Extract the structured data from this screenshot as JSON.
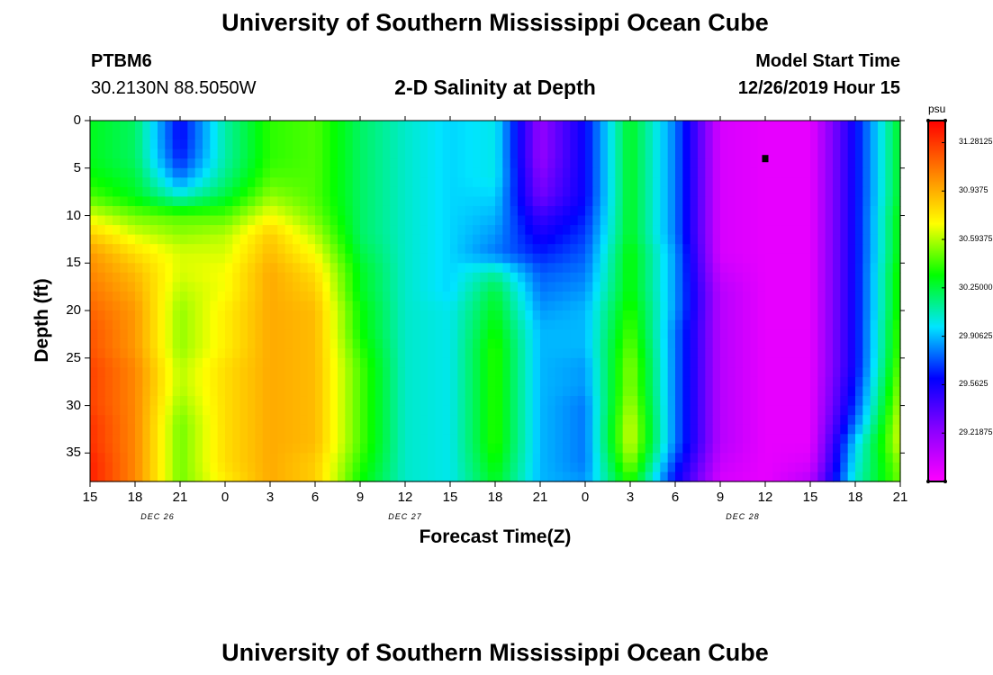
{
  "header": {
    "title_top": "University of Southern Mississippi Ocean Cube",
    "title_bottom": "University of Southern Mississippi Ocean Cube",
    "station_id": "PTBM6",
    "station_coords": "30.2130N 88.5050W",
    "subtitle": "2-D Salinity at Depth",
    "model_label": "Model Start Time",
    "model_time": "12/26/2019 Hour 15"
  },
  "chart_data": {
    "type": "heatmap",
    "title": "2-D Salinity at Depth",
    "xlabel": "Forecast Time(Z)",
    "ylabel": "Depth (ft)",
    "x_range_hours": [
      0,
      54
    ],
    "x_ticks": [
      {
        "hour": 0,
        "label": "15"
      },
      {
        "hour": 3,
        "label": "18"
      },
      {
        "hour": 6,
        "label": "21"
      },
      {
        "hour": 9,
        "label": "0"
      },
      {
        "hour": 12,
        "label": "3"
      },
      {
        "hour": 15,
        "label": "6"
      },
      {
        "hour": 18,
        "label": "9"
      },
      {
        "hour": 21,
        "label": "12"
      },
      {
        "hour": 24,
        "label": "15"
      },
      {
        "hour": 27,
        "label": "18"
      },
      {
        "hour": 30,
        "label": "21"
      },
      {
        "hour": 33,
        "label": "0"
      },
      {
        "hour": 36,
        "label": "3"
      },
      {
        "hour": 39,
        "label": "6"
      },
      {
        "hour": 42,
        "label": "9"
      },
      {
        "hour": 45,
        "label": "12"
      },
      {
        "hour": 48,
        "label": "15"
      },
      {
        "hour": 51,
        "label": "18"
      },
      {
        "hour": 54,
        "label": "21"
      }
    ],
    "date_labels": [
      {
        "hour": 4.5,
        "label": "DEC 26"
      },
      {
        "hour": 21,
        "label": "DEC 27"
      },
      {
        "hour": 43.5,
        "label": "DEC 28"
      }
    ],
    "y_range": [
      0,
      38
    ],
    "y_ticks": [
      {
        "value": 0,
        "label": "0"
      },
      {
        "value": 5,
        "label": "5"
      },
      {
        "value": 10,
        "label": "10"
      },
      {
        "value": 15,
        "label": "15"
      },
      {
        "value": 20,
        "label": "20"
      },
      {
        "value": 25,
        "label": "25"
      },
      {
        "value": 30,
        "label": "30"
      },
      {
        "value": 35,
        "label": "35"
      }
    ],
    "colorbar": {
      "unit": "psu",
      "min": 28.875,
      "max": 31.4375,
      "tick_labels": [
        "31.28125",
        "30.9375",
        "30.59375",
        "30.25000",
        "29.90625",
        "29.5625",
        "29.21875"
      ],
      "tick_values": [
        31.28125,
        30.9375,
        30.59375,
        30.25,
        29.90625,
        29.5625,
        29.21875
      ],
      "colors": [
        "#ff00ff",
        "#8a00ff",
        "#0000ff",
        "#00e5ff",
        "#00ff00",
        "#ffff00",
        "#ff8000",
        "#ff0000"
      ]
    },
    "depths": [
      0,
      2,
      4,
      6,
      8,
      10,
      12,
      14,
      16,
      18,
      20,
      22,
      24,
      26,
      28,
      30,
      32,
      34,
      36,
      38
    ],
    "time_hours": [
      0,
      3,
      6,
      9,
      12,
      15,
      18,
      21,
      24,
      27,
      30,
      33,
      36,
      39,
      42,
      45,
      48,
      51,
      54
    ],
    "values": [
      [
        30.3,
        30.2,
        29.6,
        30.1,
        30.4,
        30.45,
        30.2,
        30.05,
        29.95,
        30.0,
        29.2,
        29.6,
        30.3,
        29.8,
        29.0,
        28.95,
        28.95,
        29.6,
        30.3
      ],
      [
        30.3,
        30.2,
        29.6,
        30.1,
        30.4,
        30.45,
        30.2,
        30.05,
        29.95,
        30.0,
        29.2,
        29.6,
        30.3,
        29.8,
        29.0,
        28.95,
        28.95,
        29.6,
        30.3
      ],
      [
        30.3,
        30.2,
        29.65,
        30.1,
        30.4,
        30.45,
        30.2,
        30.05,
        29.95,
        30.0,
        29.2,
        29.6,
        30.3,
        29.8,
        29.0,
        28.95,
        28.95,
        29.6,
        30.3
      ],
      [
        30.35,
        30.25,
        29.8,
        30.15,
        30.45,
        30.45,
        30.2,
        30.05,
        29.95,
        30.0,
        29.25,
        29.6,
        30.3,
        29.8,
        29.0,
        28.95,
        28.95,
        29.6,
        30.3
      ],
      [
        30.45,
        30.3,
        30.05,
        30.25,
        30.55,
        30.45,
        30.2,
        30.05,
        29.95,
        29.95,
        29.3,
        29.6,
        30.3,
        29.8,
        29.0,
        28.95,
        28.95,
        29.6,
        30.3
      ],
      [
        30.65,
        30.5,
        30.45,
        30.45,
        30.7,
        30.5,
        30.2,
        30.05,
        29.95,
        29.9,
        29.45,
        29.65,
        30.3,
        29.8,
        29.0,
        28.95,
        28.95,
        29.6,
        30.35
      ],
      [
        30.85,
        30.65,
        30.55,
        30.6,
        30.85,
        30.6,
        30.2,
        30.05,
        29.95,
        29.85,
        29.55,
        29.7,
        30.3,
        29.8,
        29.0,
        28.95,
        28.95,
        29.6,
        30.35
      ],
      [
        31.0,
        30.8,
        30.65,
        30.65,
        30.9,
        30.7,
        30.25,
        30.05,
        29.95,
        29.8,
        29.65,
        29.75,
        30.35,
        29.85,
        29.0,
        28.95,
        28.95,
        29.6,
        30.35
      ],
      [
        31.05,
        30.9,
        30.65,
        30.7,
        30.95,
        30.8,
        30.3,
        30.05,
        29.95,
        30.1,
        29.75,
        29.8,
        30.35,
        29.85,
        29.05,
        28.95,
        28.95,
        29.6,
        30.4
      ],
      [
        31.1,
        30.95,
        30.6,
        30.7,
        30.95,
        30.85,
        30.3,
        30.05,
        29.95,
        30.25,
        29.8,
        29.85,
        30.35,
        29.85,
        29.1,
        28.95,
        28.95,
        29.6,
        30.4
      ],
      [
        31.15,
        31.0,
        30.55,
        30.75,
        30.95,
        30.9,
        30.35,
        30.05,
        30.0,
        30.3,
        29.85,
        29.9,
        30.4,
        29.85,
        29.1,
        28.95,
        28.95,
        29.6,
        30.4
      ],
      [
        31.2,
        31.0,
        30.55,
        30.75,
        30.95,
        30.9,
        30.35,
        30.05,
        30.0,
        30.35,
        29.9,
        29.9,
        30.45,
        29.8,
        29.1,
        28.95,
        28.95,
        29.6,
        30.45
      ],
      [
        31.2,
        31.0,
        30.55,
        30.75,
        30.95,
        30.9,
        30.4,
        30.05,
        30.0,
        30.4,
        29.9,
        29.9,
        30.5,
        29.8,
        29.1,
        28.95,
        28.95,
        29.6,
        30.45
      ],
      [
        31.25,
        31.05,
        30.6,
        30.8,
        30.95,
        30.9,
        30.45,
        30.05,
        30.0,
        30.4,
        29.9,
        29.85,
        30.55,
        29.8,
        29.1,
        28.95,
        28.95,
        29.6,
        30.5
      ],
      [
        31.25,
        31.05,
        30.6,
        30.8,
        30.95,
        30.9,
        30.45,
        30.05,
        30.0,
        30.4,
        29.9,
        29.85,
        30.55,
        29.8,
        29.1,
        28.95,
        28.95,
        29.65,
        30.55
      ],
      [
        31.25,
        31.05,
        30.55,
        30.8,
        30.95,
        30.9,
        30.45,
        30.05,
        30.0,
        30.4,
        29.9,
        29.8,
        30.6,
        29.8,
        29.1,
        28.95,
        28.95,
        29.7,
        30.6
      ],
      [
        31.3,
        31.05,
        30.5,
        30.8,
        30.95,
        30.9,
        30.45,
        30.05,
        30.0,
        30.4,
        29.9,
        29.8,
        30.65,
        29.8,
        29.1,
        28.95,
        28.95,
        29.8,
        30.65
      ],
      [
        31.3,
        31.05,
        30.5,
        30.8,
        30.95,
        30.9,
        30.45,
        30.05,
        30.0,
        30.4,
        29.9,
        29.8,
        30.65,
        29.8,
        29.1,
        28.95,
        28.95,
        29.95,
        30.65
      ],
      [
        31.35,
        31.05,
        30.5,
        30.8,
        30.95,
        30.85,
        30.4,
        30.05,
        30.0,
        30.35,
        29.9,
        29.8,
        30.55,
        29.7,
        29.05,
        28.95,
        29.0,
        30.0,
        30.55
      ],
      [
        31.35,
        31.05,
        30.5,
        30.75,
        30.95,
        30.85,
        30.35,
        30.05,
        30.0,
        30.3,
        29.9,
        29.85,
        30.4,
        29.6,
        29.0,
        28.95,
        29.1,
        30.05,
        30.5
      ]
    ],
    "marker": {
      "hour": 45,
      "depth": 4
    }
  }
}
